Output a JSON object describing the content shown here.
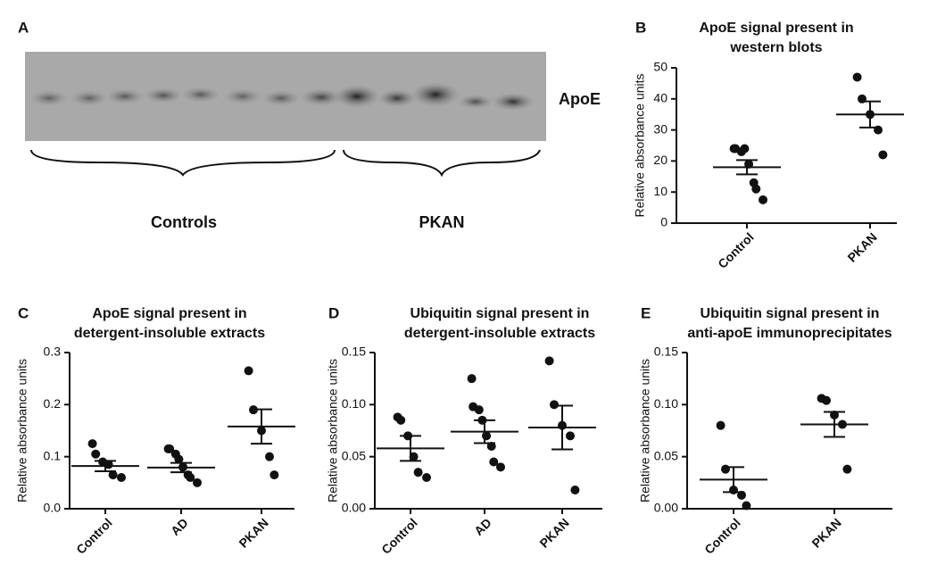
{
  "blot": {
    "panel": "A",
    "band_label": "ApoE",
    "groups": [
      "Controls",
      "PKAN"
    ]
  },
  "chart_data": [
    {
      "type": "dot",
      "panel": "B",
      "title": [
        "ApoE signal present in",
        "western blots"
      ],
      "ylabel": "Relative absorbance units",
      "categories": [
        "Control",
        "PKAN"
      ],
      "values": [
        [
          24,
          24,
          23,
          24,
          19,
          13,
          11,
          7.5
        ],
        [
          47,
          40,
          35,
          30,
          22
        ]
      ],
      "mean": [
        18,
        35
      ],
      "sem": [
        2.3,
        4.2
      ],
      "color": "#111111",
      "ylim": [
        0,
        50
      ],
      "yticks": [
        0,
        10,
        20,
        30,
        40,
        50
      ]
    },
    {
      "type": "dot",
      "panel": "C",
      "title": [
        "ApoE signal present in",
        "detergent-insoluble extracts"
      ],
      "ylabel": "Relative absorbance units",
      "categories": [
        "Control",
        "AD",
        "PKAN"
      ],
      "values": [
        [
          0.125,
          0.105,
          0.09,
          0.085,
          0.065,
          0.06
        ],
        [
          0.115,
          0.115,
          0.105,
          0.095,
          0.08,
          0.065,
          0.06,
          0.05
        ],
        [
          0.265,
          0.19,
          0.15,
          0.1,
          0.065
        ]
      ],
      "mean": [
        0.082,
        0.079,
        0.158
      ],
      "sem": [
        0.01,
        0.009,
        0.033
      ],
      "color": "#111111",
      "ylim": [
        0,
        0.3
      ],
      "yticks": [
        {
          "value": 0,
          "label": "0.0"
        },
        0.1,
        0.2,
        0.3
      ]
    },
    {
      "type": "dot",
      "panel": "D",
      "title": [
        "Ubiquitin signal present in",
        "detergent-insoluble extracts"
      ],
      "ylabel": "Relative absorbance units",
      "categories": [
        "Control",
        "AD",
        "PKAN"
      ],
      "values": [
        [
          0.088,
          0.085,
          0.07,
          0.05,
          0.035,
          0.03
        ],
        [
          0.125,
          0.098,
          0.095,
          0.085,
          0.07,
          0.06,
          0.045,
          0.04
        ],
        [
          0.142,
          0.1,
          0.08,
          0.07,
          0.018
        ]
      ],
      "mean": [
        0.058,
        0.074,
        0.078
      ],
      "sem": [
        0.012,
        0.011,
        0.021
      ],
      "color": "#111111",
      "ylim": [
        0,
        0.15
      ],
      "yticks": [
        {
          "value": 0,
          "label": "0.00"
        },
        {
          "value": 0.05,
          "label": "0.05"
        },
        {
          "value": 0.1,
          "label": "0.10"
        },
        {
          "value": 0.15,
          "label": "0.15"
        }
      ]
    },
    {
      "type": "dot",
      "panel": "E",
      "title": [
        "Ubiquitin signal present in",
        "anti-apoE immunoprecipitates"
      ],
      "ylabel": "Relative absorbance units",
      "categories": [
        "Control",
        "PKAN"
      ],
      "values": [
        [
          0.08,
          0.038,
          0.018,
          0.013,
          0.003
        ],
        [
          0.106,
          0.104,
          0.09,
          0.081,
          0.038
        ]
      ],
      "mean": [
        0.028,
        0.081
      ],
      "sem": [
        0.012,
        0.012
      ],
      "color": "#111111",
      "ylim": [
        0,
        0.15
      ],
      "yticks": [
        {
          "value": 0,
          "label": "0.00"
        },
        {
          "value": 0.05,
          "label": "0.05"
        },
        {
          "value": 0.1,
          "label": "0.10"
        },
        {
          "value": 0.15,
          "label": "0.15"
        }
      ]
    }
  ]
}
